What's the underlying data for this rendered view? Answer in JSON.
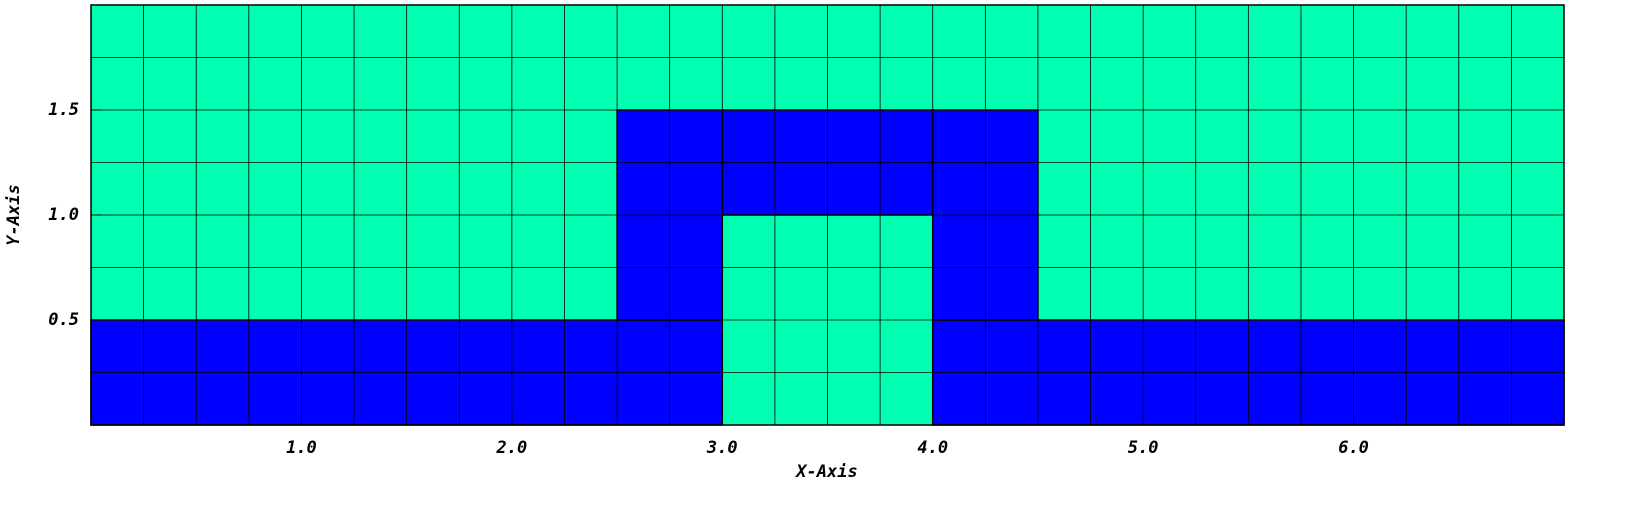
{
  "chart_data": {
    "type": "mesh",
    "xlabel": "X-Axis",
    "ylabel": "Y-Axis",
    "xlim": [
      0,
      7
    ],
    "ylim": [
      0,
      2
    ],
    "xticks": [
      {
        "value": 1,
        "label": "1.0"
      },
      {
        "value": 2,
        "label": "2.0"
      },
      {
        "value": 3,
        "label": "3.0"
      },
      {
        "value": 4,
        "label": "4.0"
      },
      {
        "value": 5,
        "label": "5.0"
      },
      {
        "value": 6,
        "label": "6.0"
      }
    ],
    "yticks": [
      {
        "value": 0.5,
        "label": "0.5"
      },
      {
        "value": 1,
        "label": "1.0"
      },
      {
        "value": 1.5,
        "label": "1.5"
      }
    ],
    "background_color": "#00ffb0",
    "mesh_spacing": 0.25,
    "regions": [
      {
        "color": "#0000ff",
        "rect": [
          0,
          0,
          3,
          0.5
        ]
      },
      {
        "color": "#0000ff",
        "rect": [
          4,
          0,
          7,
          0.5
        ]
      },
      {
        "color": "#0000ff",
        "rect": [
          2.5,
          0.5,
          3,
          1.5
        ]
      },
      {
        "color": "#0000ff",
        "rect": [
          4,
          0.5,
          4.5,
          1.5
        ]
      },
      {
        "color": "#0000ff",
        "rect": [
          3,
          1,
          4,
          1.5
        ]
      }
    ]
  }
}
